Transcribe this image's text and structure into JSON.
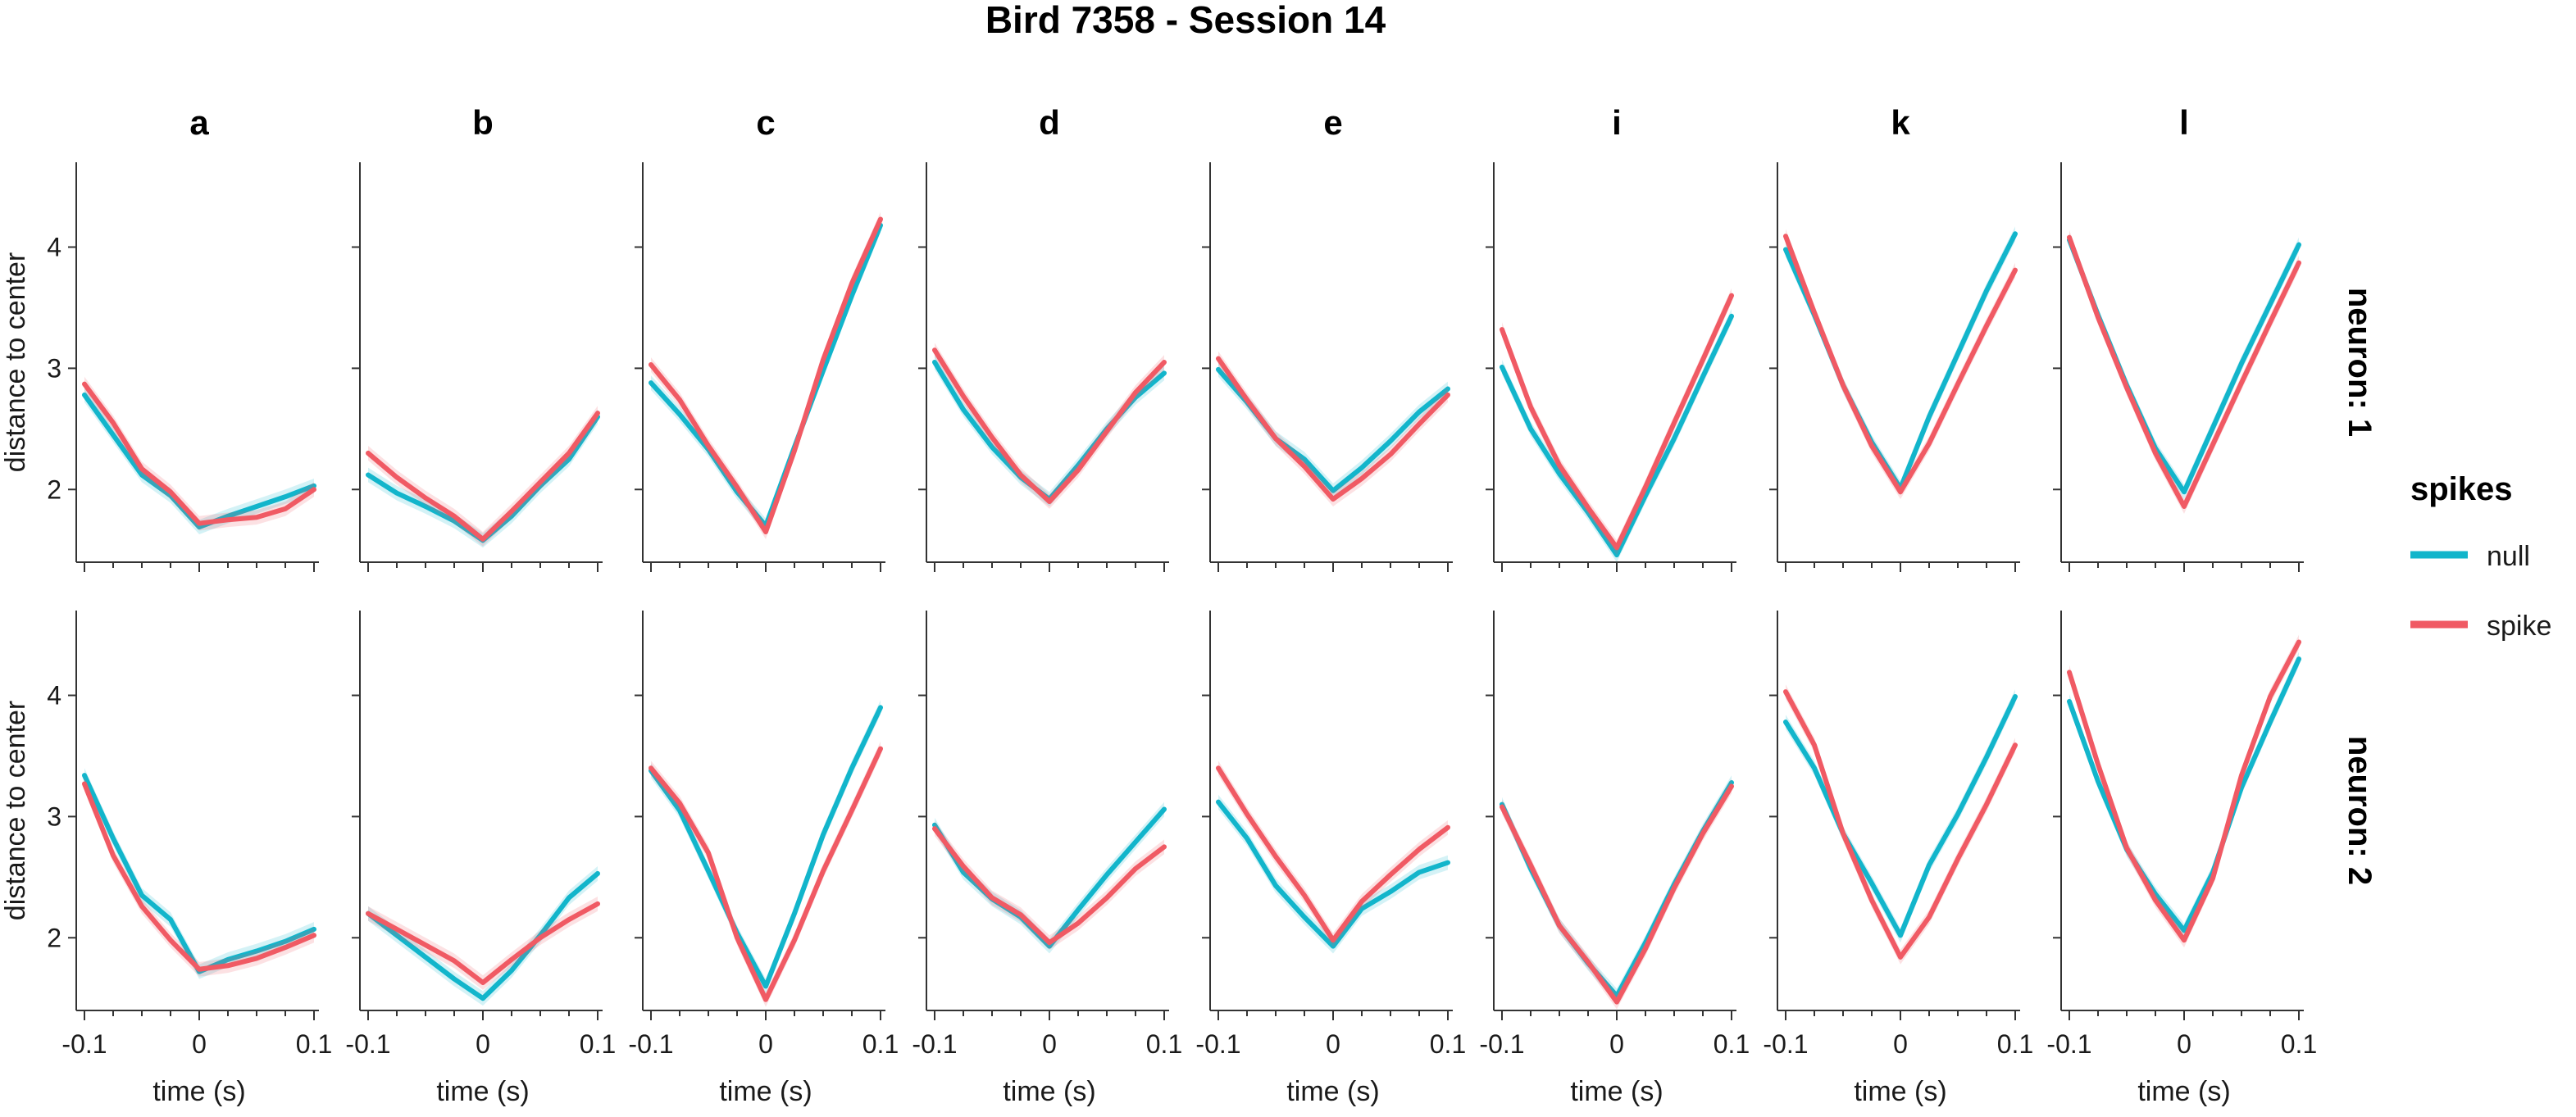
{
  "chart_data": {
    "type": "line",
    "title": "Bird 7358 - Session 14",
    "facet_columns": [
      "a",
      "b",
      "c",
      "d",
      "e",
      "i",
      "k",
      "l"
    ],
    "facet_rows": [
      "neuron: 1",
      "neuron: 2"
    ],
    "xlabel": "time (s)",
    "ylabel": "distance to center",
    "xlim": [
      -0.1,
      0.1
    ],
    "ylim": [
      1.4,
      4.7
    ],
    "x_ticks": [
      -0.1,
      0,
      0.1
    ],
    "x_tick_labels": [
      "-0.1",
      "0",
      "0.1"
    ],
    "y_ticks": [
      2,
      3,
      4
    ],
    "y_tick_labels": [
      "2",
      "3",
      "4"
    ],
    "x": [
      -0.1,
      -0.075,
      -0.05,
      -0.025,
      0,
      0.025,
      0.05,
      0.075,
      0.1
    ],
    "legend": {
      "title": "spikes",
      "placement": "right",
      "entries": [
        {
          "label": "null",
          "color": "#12B5CB"
        },
        {
          "label": "spike",
          "color": "#F05A64"
        }
      ]
    },
    "band_halfwidth": 0.06,
    "panels": [
      {
        "row": 0,
        "col": 0,
        "null": [
          2.78,
          2.45,
          2.12,
          1.95,
          1.69,
          1.78,
          1.86,
          1.94,
          2.03
        ],
        "spike": [
          2.87,
          2.55,
          2.17,
          1.98,
          1.72,
          1.75,
          1.77,
          1.84,
          2.0
        ]
      },
      {
        "row": 0,
        "col": 1,
        "null": [
          2.12,
          1.97,
          1.86,
          1.74,
          1.58,
          1.78,
          2.03,
          2.25,
          2.6
        ],
        "spike": [
          2.3,
          2.1,
          1.93,
          1.78,
          1.59,
          1.82,
          2.06,
          2.3,
          2.63
        ]
      },
      {
        "row": 0,
        "col": 2,
        "null": [
          2.88,
          2.62,
          2.33,
          1.98,
          1.7,
          2.35,
          2.98,
          3.6,
          4.18
        ],
        "spike": [
          3.03,
          2.74,
          2.36,
          2.02,
          1.65,
          2.32,
          3.07,
          3.7,
          4.23
        ]
      },
      {
        "row": 0,
        "col": 3,
        "null": [
          3.05,
          2.66,
          2.35,
          2.1,
          1.92,
          2.2,
          2.5,
          2.76,
          2.96
        ],
        "spike": [
          3.15,
          2.77,
          2.43,
          2.12,
          1.9,
          2.16,
          2.48,
          2.8,
          3.05
        ]
      },
      {
        "row": 0,
        "col": 4,
        "null": [
          2.99,
          2.72,
          2.42,
          2.25,
          1.99,
          2.18,
          2.4,
          2.64,
          2.83
        ],
        "spike": [
          3.08,
          2.74,
          2.42,
          2.19,
          1.92,
          2.09,
          2.29,
          2.54,
          2.78
        ]
      },
      {
        "row": 0,
        "col": 5,
        "null": [
          3.01,
          2.5,
          2.13,
          1.81,
          1.46,
          1.95,
          2.42,
          2.93,
          3.43
        ],
        "spike": [
          3.32,
          2.68,
          2.2,
          1.85,
          1.52,
          2.02,
          2.55,
          3.07,
          3.6
        ]
      },
      {
        "row": 0,
        "col": 6,
        "null": [
          3.98,
          3.44,
          2.86,
          2.39,
          2.01,
          2.6,
          3.12,
          3.64,
          4.11
        ],
        "spike": [
          4.09,
          3.46,
          2.86,
          2.36,
          1.98,
          2.38,
          2.87,
          3.35,
          3.81
        ]
      },
      {
        "row": 0,
        "col": 7,
        "null": [
          4.06,
          3.44,
          2.86,
          2.34,
          1.98,
          2.51,
          3.04,
          3.53,
          4.02
        ],
        "spike": [
          4.08,
          3.42,
          2.84,
          2.3,
          1.86,
          2.37,
          2.88,
          3.38,
          3.87
        ]
      },
      {
        "row": 1,
        "col": 0,
        "null": [
          3.34,
          2.82,
          2.35,
          2.15,
          1.72,
          1.82,
          1.89,
          1.97,
          2.07
        ],
        "spike": [
          3.27,
          2.68,
          2.26,
          1.98,
          1.74,
          1.77,
          1.83,
          1.92,
          2.02
        ]
      },
      {
        "row": 1,
        "col": 1,
        "null": [
          2.2,
          2.02,
          1.84,
          1.66,
          1.5,
          1.73,
          2.02,
          2.33,
          2.53
        ],
        "spike": [
          2.2,
          2.07,
          1.94,
          1.81,
          1.63,
          1.82,
          2.0,
          2.15,
          2.28
        ]
      },
      {
        "row": 1,
        "col": 2,
        "null": [
          3.38,
          3.05,
          2.55,
          2.04,
          1.6,
          2.2,
          2.85,
          3.4,
          3.9
        ],
        "spike": [
          3.4,
          3.11,
          2.7,
          2.0,
          1.49,
          1.98,
          2.55,
          3.05,
          3.56
        ]
      },
      {
        "row": 1,
        "col": 3,
        "null": [
          2.93,
          2.54,
          2.32,
          2.17,
          1.93,
          2.23,
          2.52,
          2.79,
          3.06
        ],
        "spike": [
          2.9,
          2.59,
          2.33,
          2.19,
          1.96,
          2.12,
          2.33,
          2.57,
          2.75
        ]
      },
      {
        "row": 1,
        "col": 4,
        "null": [
          3.12,
          2.82,
          2.43,
          2.17,
          1.93,
          2.24,
          2.38,
          2.54,
          2.62
        ],
        "spike": [
          3.4,
          3.02,
          2.67,
          2.35,
          1.98,
          2.3,
          2.52,
          2.73,
          2.91
        ]
      },
      {
        "row": 1,
        "col": 5,
        "null": [
          3.1,
          2.57,
          2.1,
          1.79,
          1.52,
          1.96,
          2.44,
          2.88,
          3.28
        ],
        "spike": [
          3.08,
          2.6,
          2.1,
          1.8,
          1.47,
          1.91,
          2.41,
          2.86,
          3.25
        ]
      },
      {
        "row": 1,
        "col": 6,
        "null": [
          3.78,
          3.4,
          2.86,
          2.45,
          2.02,
          2.6,
          3.02,
          3.49,
          3.99
        ],
        "spike": [
          4.03,
          3.59,
          2.86,
          2.31,
          1.84,
          2.17,
          2.65,
          3.1,
          3.59
        ]
      },
      {
        "row": 1,
        "col": 7,
        "null": [
          3.95,
          3.29,
          2.73,
          2.36,
          2.06,
          2.54,
          3.24,
          3.78,
          4.3
        ],
        "spike": [
          4.19,
          3.43,
          2.74,
          2.31,
          1.98,
          2.49,
          3.34,
          3.99,
          4.44
        ]
      }
    ]
  }
}
